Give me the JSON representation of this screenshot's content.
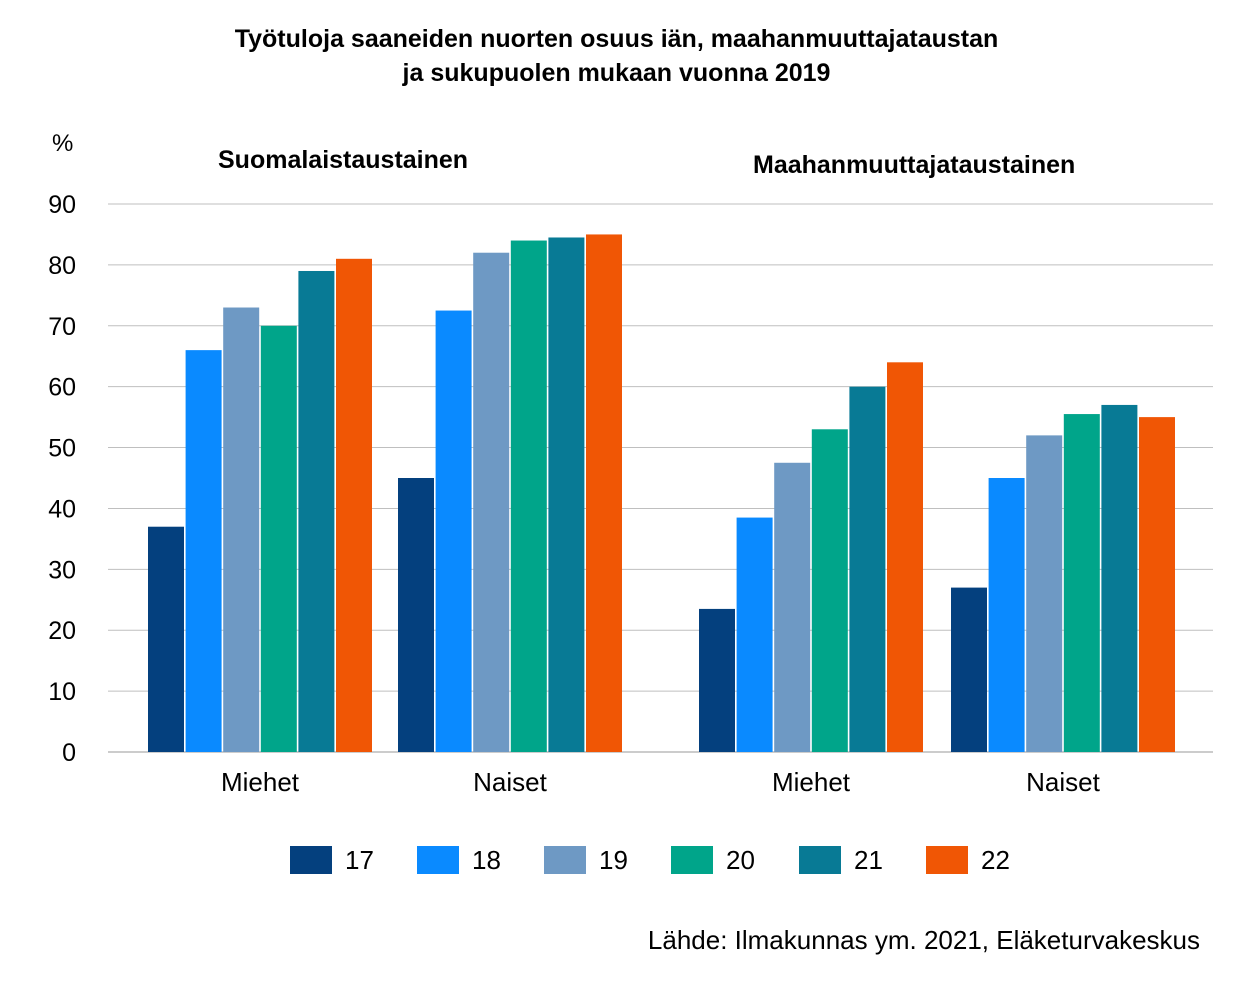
{
  "title_line1": "Työtuloja saaneiden nuorten osuus iän, maahanmuuttajataustan",
  "title_line2": "ja sukupuolen mukaan vuonna 2019",
  "unit_label": "%",
  "source": "Lähde: Ilmakunnas ym. 2021, Eläketurvakeskus",
  "colors": {
    "17": "#04407e",
    "18": "#0a8aff",
    "19": "#6e99c4",
    "20": "#00a58a",
    "21": "#087a95",
    "22": "#f05605",
    "grid": "#bfbfbf",
    "axis": "#9a9a9a"
  },
  "chart_data": {
    "type": "bar",
    "ylabel": "%",
    "ylim": [
      0,
      90
    ],
    "yticks": [
      0,
      10,
      20,
      30,
      40,
      50,
      60,
      70,
      80,
      90
    ],
    "grid": true,
    "legend_position": "bottom",
    "series_names": [
      "17",
      "18",
      "19",
      "20",
      "21",
      "22"
    ],
    "groups": [
      {
        "name": "Suomalaistaustainen",
        "categories": [
          {
            "label": "Miehet",
            "values": [
              37,
              66,
              73,
              70,
              79,
              81
            ]
          },
          {
            "label": "Naiset",
            "values": [
              45,
              72.5,
              82,
              84,
              84.5,
              85
            ]
          }
        ]
      },
      {
        "name": "Maahanmuuttajataustainen",
        "categories": [
          {
            "label": "Miehet",
            "values": [
              23.5,
              38.5,
              47.5,
              53,
              60,
              64
            ]
          },
          {
            "label": "Naiset",
            "values": [
              27,
              45,
              52,
              55.5,
              57,
              55
            ]
          }
        ]
      }
    ]
  }
}
